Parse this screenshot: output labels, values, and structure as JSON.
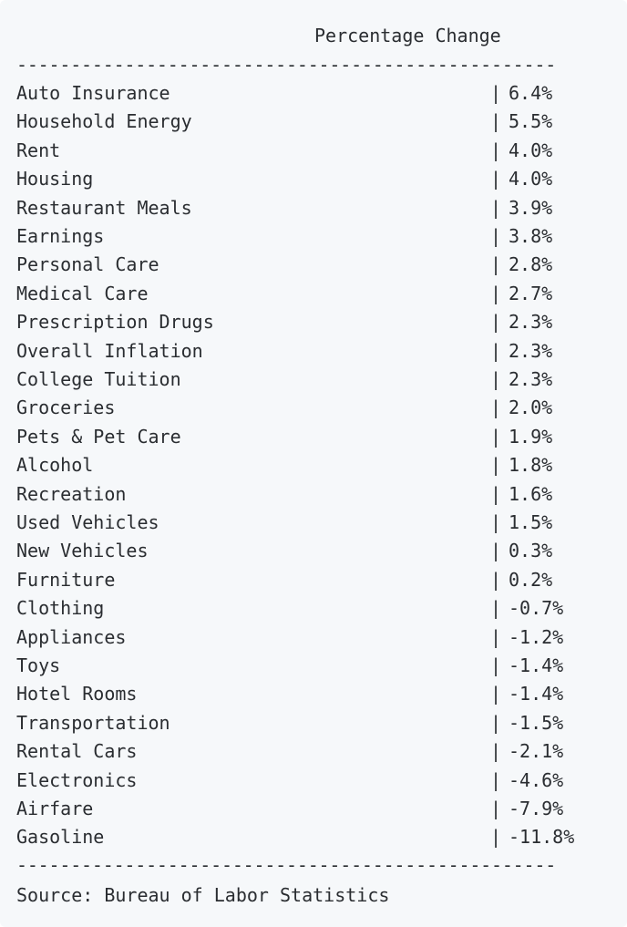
{
  "chart_data": {
    "type": "table",
    "columns": [
      "",
      "Percentage Change"
    ],
    "categories": [
      "Auto Insurance",
      "Household Energy",
      "Rent",
      "Housing",
      "Restaurant Meals",
      "Earnings",
      "Personal Care",
      "Medical Care",
      "Prescription Drugs",
      "Overall Inflation",
      "College Tuition",
      "Groceries",
      "Pets & Pet Care",
      "Alcohol",
      "Recreation",
      "Used Vehicles",
      "New Vehicles",
      "Furniture",
      "Clothing",
      "Appliances",
      "Toys",
      "Hotel Rooms",
      "Transportation",
      "Rental Cars",
      "Electronics",
      "Airfare",
      "Gasoline"
    ],
    "values": [
      "6.4%",
      "5.5%",
      "4.0%",
      "4.0%",
      "3.9%",
      "3.8%",
      "2.8%",
      "2.7%",
      "2.3%",
      "2.3%",
      "2.3%",
      "2.0%",
      "1.9%",
      "1.8%",
      "1.6%",
      "1.5%",
      "0.3%",
      "0.2%",
      "-0.7%",
      "-1.2%",
      "-1.4%",
      "-1.4%",
      "-1.5%",
      "-2.1%",
      "-4.6%",
      "-7.9%",
      "-11.8%"
    ],
    "header": "Percentage Change",
    "separator": "|",
    "rule": "--------------------------------------------------",
    "source": "Source: Bureau of Labor Statistics"
  }
}
